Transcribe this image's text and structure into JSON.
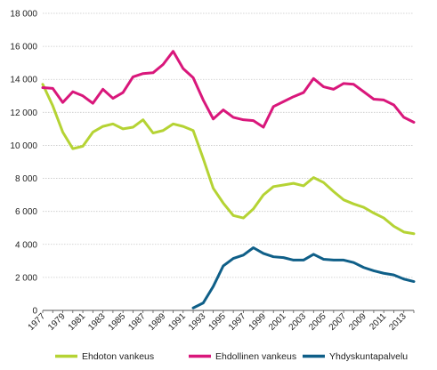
{
  "chart_data": {
    "type": "line",
    "title": "",
    "xlabel": "",
    "ylabel": "",
    "xlim": [
      1977,
      2014
    ],
    "ylim": [
      0,
      18000
    ],
    "grid": true,
    "legend_placement": "bottom",
    "x_ticks": [
      1977,
      1979,
      1981,
      1983,
      1985,
      1987,
      1989,
      1991,
      1993,
      1995,
      1997,
      1999,
      2001,
      2003,
      2005,
      2007,
      2009,
      2011,
      2013
    ],
    "y_ticks": [
      0,
      2000,
      4000,
      6000,
      8000,
      10000,
      12000,
      14000,
      16000,
      18000
    ],
    "y_tick_labels": [
      "0",
      "2 000",
      "4 000",
      "6 000",
      "8 000",
      "10 000",
      "12 000",
      "14 000",
      "16 000",
      "18 000"
    ],
    "series": [
      {
        "name": "Ehdoton vankeus",
        "color": "#b5d334",
        "x": [
          1977,
          1978,
          1979,
          1980,
          1981,
          1982,
          1983,
          1984,
          1985,
          1986,
          1987,
          1988,
          1989,
          1990,
          1991,
          1992,
          1993,
          1994,
          1995,
          1996,
          1997,
          1998,
          1999,
          2000,
          2001,
          2002,
          2003,
          2004,
          2005,
          2006,
          2007,
          2008,
          2009,
          2010,
          2011,
          2012,
          2013,
          2014
        ],
        "values": [
          13700,
          12400,
          10800,
          9800,
          9950,
          10800,
          11150,
          11300,
          11000,
          11100,
          11550,
          10750,
          10900,
          11300,
          11150,
          10900,
          9200,
          7400,
          6500,
          5750,
          5600,
          6150,
          7000,
          7500,
          7600,
          7700,
          7550,
          8050,
          7750,
          7200,
          6700,
          6450,
          6250,
          5900,
          5600,
          5100,
          4750,
          4650
        ]
      },
      {
        "name": "Ehdollinen vankeus",
        "color": "#d9177b",
        "x": [
          1977,
          1978,
          1979,
          1980,
          1981,
          1982,
          1983,
          1984,
          1985,
          1986,
          1987,
          1988,
          1989,
          1990,
          1991,
          1992,
          1993,
          1994,
          1995,
          1996,
          1997,
          1998,
          1999,
          2000,
          2001,
          2002,
          2003,
          2004,
          2005,
          2006,
          2007,
          2008,
          2009,
          2010,
          2011,
          2012,
          2013,
          2014
        ],
        "values": [
          13500,
          13450,
          12600,
          13250,
          13000,
          12550,
          13400,
          12850,
          13200,
          14150,
          14350,
          14400,
          14900,
          15700,
          14650,
          14100,
          12750,
          11600,
          12150,
          11700,
          11550,
          11500,
          11100,
          12350,
          12650,
          12950,
          13200,
          14050,
          13550,
          13400,
          13750,
          13700,
          13250,
          12800,
          12750,
          12450,
          11700,
          11400
        ]
      },
      {
        "name": "Yhdyskuntapalvelu",
        "color": "#0f5f88",
        "x": [
          1992,
          1993,
          1994,
          1995,
          1996,
          1997,
          1998,
          1999,
          2000,
          2001,
          2002,
          2003,
          2004,
          2005,
          2006,
          2007,
          2008,
          2009,
          2010,
          2011,
          2012,
          2013,
          2014
        ],
        "values": [
          150,
          450,
          1450,
          2700,
          3150,
          3350,
          3800,
          3450,
          3250,
          3200,
          3050,
          3050,
          3400,
          3100,
          3050,
          3050,
          2900,
          2600,
          2400,
          2250,
          2150,
          1900,
          1750
        ]
      }
    ]
  }
}
